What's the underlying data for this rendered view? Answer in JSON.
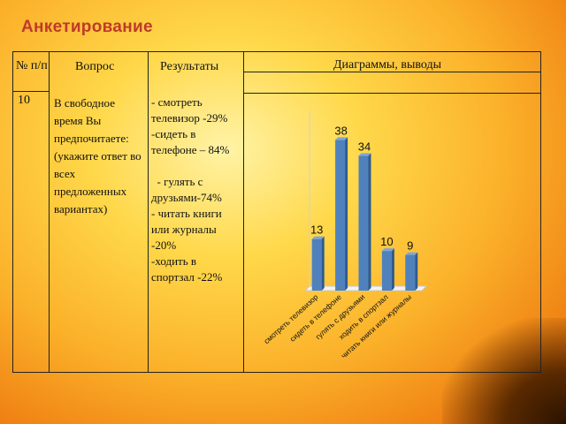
{
  "slide": {
    "title": "Анкетирование"
  },
  "table": {
    "headers": {
      "number": "№ п/п",
      "question": "Вопрос",
      "results": "Результаты",
      "charts": "Диаграммы, выводы"
    },
    "row": {
      "number": "10",
      "question": "В свободное время Вы предпочитаете: (укажите ответ во всех предложенных вариантах)",
      "results": [
        "- смотреть телевизор -29%",
        "-сидеть в телефоне – 84%",
        "",
        "  - гулять с друзьями-74%",
        "- читать книги или журналы -20%",
        "-ходить в спортзал -22%"
      ]
    }
  },
  "chart_data": {
    "type": "bar",
    "categories": [
      "смотреть телевизор",
      "сидеть в телефоне",
      "гулять с друзьями",
      "ходить в спортзал",
      "читать книги или журналы"
    ],
    "values": [
      13,
      38,
      34,
      10,
      9
    ],
    "ylim": [
      0,
      45
    ],
    "grid": false,
    "legend": "none",
    "colors": {
      "bar": "#4f81bd",
      "bar_dark": "#2f5a8f",
      "bar_light": "#7fa6d6"
    }
  }
}
